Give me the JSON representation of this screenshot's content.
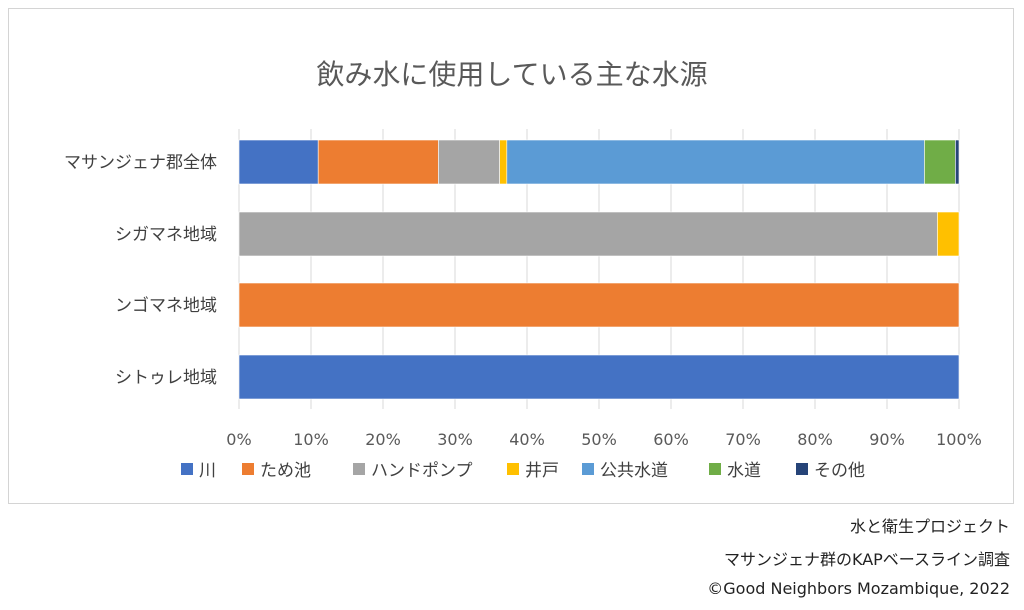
{
  "chart_data": {
    "type": "bar",
    "orientation": "horizontal",
    "stacked": true,
    "title": "飲み水に使用している主な水源",
    "categories": [
      "マサンジェナ郡全体",
      "シガマネ地域",
      "ンゴマネ地域",
      "シトゥレ地域"
    ],
    "xlim": [
      0,
      100
    ],
    "xtick_labels": [
      "0%",
      "10%",
      "20%",
      "30%",
      "40%",
      "50%",
      "60%",
      "70%",
      "80%",
      "90%",
      "100%"
    ],
    "grid": true,
    "legend_position": "bottom",
    "series": [
      {
        "name": "川",
        "color": "#4472C4",
        "values": [
          11,
          0,
          0,
          100
        ]
      },
      {
        "name": "ため池",
        "color": "#ED7D31",
        "values": [
          16.7,
          0,
          100,
          0
        ]
      },
      {
        "name": "ハンドポンプ",
        "color": "#A5A5A5",
        "values": [
          8.5,
          97,
          0,
          0
        ]
      },
      {
        "name": "井戸",
        "color": "#FFC000",
        "values": [
          1,
          3,
          0,
          0
        ]
      },
      {
        "name": "公共水道",
        "color": "#5B9BD5",
        "values": [
          58,
          0,
          0,
          0
        ]
      },
      {
        "name": "水道",
        "color": "#70AD47",
        "values": [
          4.3,
          0,
          0,
          0
        ]
      },
      {
        "name": "その他",
        "color": "#264478",
        "values": [
          0.5,
          0,
          0,
          0
        ]
      }
    ]
  },
  "credits": {
    "line1": "水と衛生プロジェクト",
    "line2": "マサンジェナ群のKAPベースライン調査",
    "line3": "©Good Neighbors Mozambique, 2022"
  }
}
